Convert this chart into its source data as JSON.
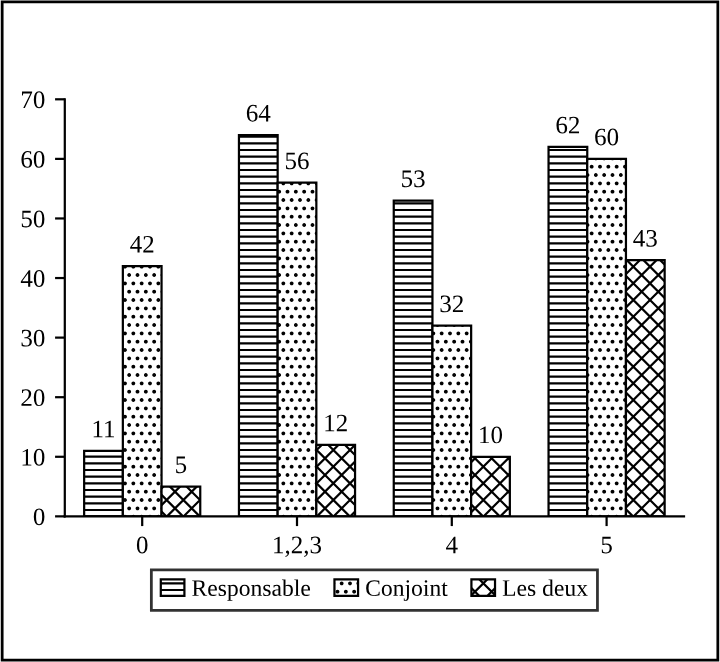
{
  "chart_data": {
    "type": "bar",
    "categories": [
      "0",
      "1,2,3",
      "4",
      "5"
    ],
    "series": [
      {
        "name": "Responsable",
        "color": "#000000",
        "values": [
          11,
          64,
          53,
          62
        ]
      },
      {
        "name": "Conjoint",
        "color": "#000000",
        "values": [
          42,
          56,
          32,
          60
        ]
      },
      {
        "name": "Les deux",
        "color": "#000000",
        "values": [
          5,
          12,
          10,
          43
        ]
      }
    ],
    "ylim": [
      0,
      70
    ],
    "yticks": [
      0,
      10,
      20,
      30,
      40,
      50,
      60,
      70
    ],
    "data_labels": true,
    "legend": "bottom",
    "grid": false
  }
}
